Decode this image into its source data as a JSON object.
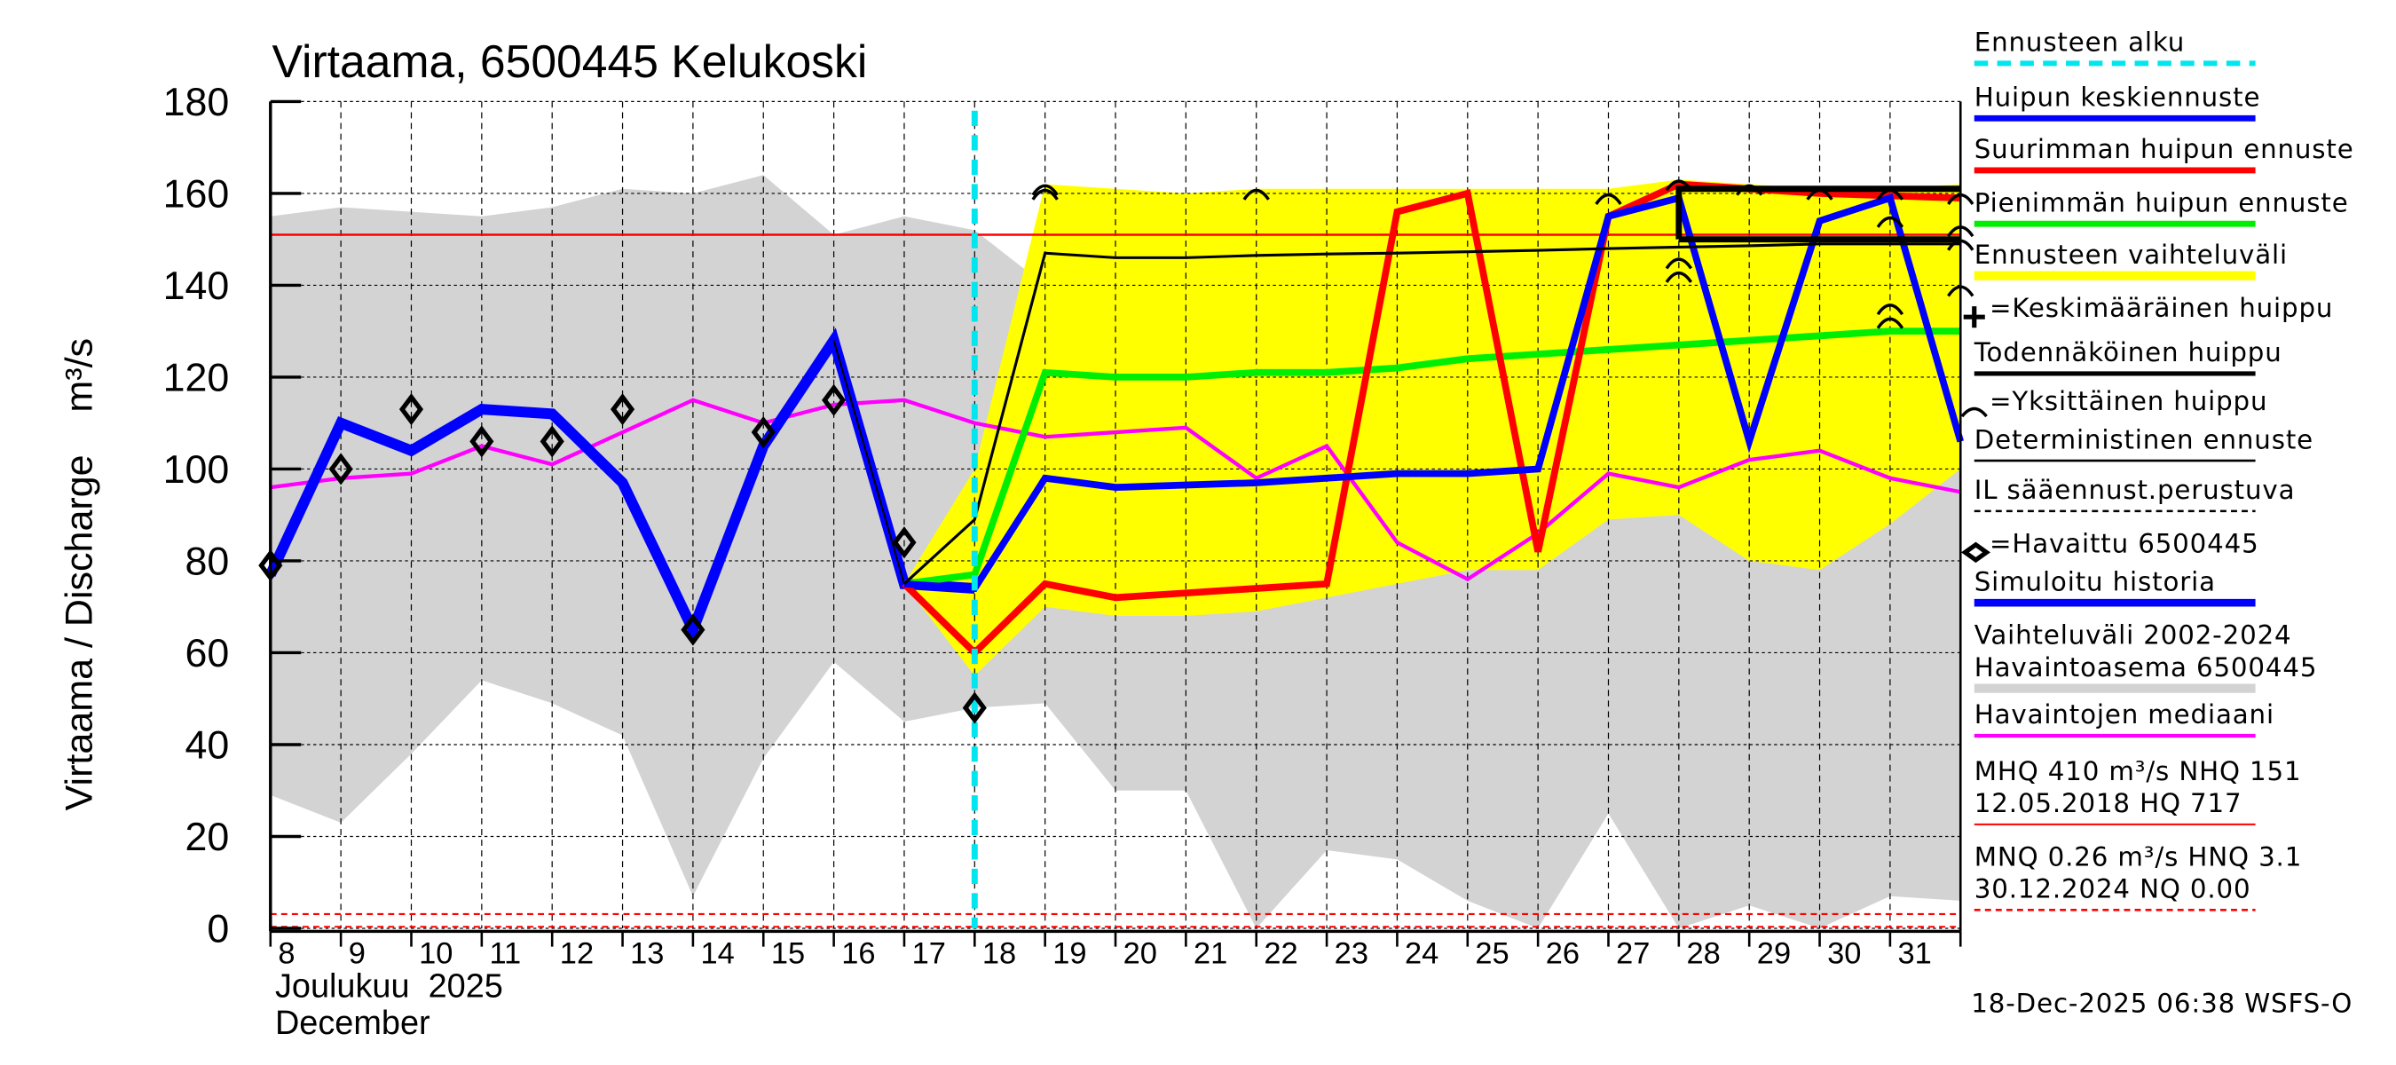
{
  "chart_data": {
    "type": "line",
    "title": "Virtaama, 6500445 Kelukoski",
    "ylabel": "Virtaama / Discharge    m³/s",
    "ylim": [
      0,
      180
    ],
    "yticks": [
      0,
      20,
      40,
      60,
      80,
      100,
      120,
      140,
      160,
      180
    ],
    "xlim": [
      8,
      32
    ],
    "xticks": [
      "8",
      "9",
      "10",
      "11",
      "12",
      "13",
      "14",
      "15",
      "16",
      "17",
      "18",
      "19",
      "20",
      "21",
      "22",
      "23",
      "24",
      "25",
      "26",
      "27",
      "28",
      "29",
      "30",
      "31"
    ],
    "xlabel_month_fi": "Joulukuu  2025",
    "xlabel_month_en": "December",
    "forecast_start_day": 18,
    "grid": true,
    "colors": {
      "forecast_start": "#00e5ee",
      "mean_peak": "#0000ff",
      "max_peak": "#ff0000",
      "min_peak": "#00ee00",
      "forecast_range": "#ffff00",
      "history_range": "#d3d3d3",
      "median": "#ff00ff",
      "deterministic": "#000000",
      "simulated": "#0000ff"
    },
    "historical_range": {
      "x": [
        8,
        9,
        10,
        11,
        12,
        13,
        14,
        15,
        16,
        17,
        18,
        19,
        20,
        21,
        22,
        23,
        24,
        25,
        26,
        27,
        28,
        29,
        30,
        31,
        32
      ],
      "upper": [
        155,
        157,
        156,
        155,
        157,
        161,
        160,
        164,
        151,
        155,
        152,
        140,
        147,
        154,
        158,
        155,
        158,
        154,
        144,
        154,
        160,
        160,
        158,
        150,
        132
      ],
      "lower": [
        29,
        23,
        38,
        54,
        49,
        42,
        7,
        37,
        58,
        45,
        48,
        49,
        30,
        30,
        0,
        17,
        15,
        6,
        0,
        25,
        0,
        5,
        0,
        7,
        6
      ]
    },
    "forecast_range": {
      "x": [
        17,
        18,
        19,
        20,
        21,
        22,
        23,
        24,
        25,
        26,
        27,
        28,
        29,
        30,
        31,
        32
      ],
      "upper": [
        75,
        100,
        162,
        161,
        160,
        161,
        161,
        161,
        161,
        161,
        161,
        163,
        162,
        161,
        161,
        162
      ],
      "lower": [
        75,
        55,
        70,
        68,
        68,
        69,
        72,
        75,
        78,
        78,
        89,
        90,
        80,
        78,
        88,
        100
      ]
    },
    "series": [
      {
        "name": "Havaintojen mediaani",
        "key": "median",
        "x": [
          8,
          9,
          10,
          11,
          12,
          13,
          14,
          15,
          16,
          17,
          18,
          19,
          20,
          21,
          22,
          23,
          24,
          25,
          26,
          27,
          28,
          29,
          30,
          31,
          32
        ],
        "y": [
          96,
          98,
          99,
          105,
          101,
          108,
          115,
          110,
          114,
          115,
          110,
          107,
          108,
          109,
          98,
          105,
          84,
          76,
          86,
          99,
          96,
          102,
          104,
          98,
          95
        ]
      },
      {
        "name": "Simuloitu historia",
        "key": "simulated",
        "x": [
          8,
          9,
          10,
          11,
          12,
          13,
          14,
          15,
          16,
          17,
          18
        ],
        "y": [
          77,
          110,
          104,
          113,
          112,
          97,
          65,
          105,
          128,
          75,
          74
        ]
      },
      {
        "name": "Pienimmän huipun ennuste",
        "key": "min_peak",
        "x": [
          17,
          18,
          19,
          20,
          21,
          22,
          23,
          24,
          25,
          26,
          27,
          28,
          29,
          30,
          31,
          32
        ],
        "y": [
          75,
          77,
          121,
          120,
          120,
          121,
          121,
          122,
          124,
          125,
          126,
          127,
          128,
          129,
          130,
          130
        ]
      },
      {
        "name": "Suurimman huipun ennuste",
        "key": "max_peak",
        "x": [
          17,
          18,
          19,
          20,
          21,
          22,
          23,
          24,
          25,
          26,
          27,
          28,
          29,
          30,
          31,
          32
        ],
        "y": [
          75,
          60,
          75,
          72,
          73,
          74,
          75,
          156,
          160,
          82,
          155,
          162,
          161,
          160,
          159.5,
          159
        ]
      },
      {
        "name": "Huipun keskiennuste",
        "key": "mean_peak",
        "x": [
          17,
          18,
          19,
          20,
          21,
          22,
          23,
          24,
          25,
          26,
          27,
          28,
          29,
          30,
          31,
          32
        ],
        "y": [
          75,
          74,
          98,
          96,
          96.5,
          97,
          98,
          99,
          99,
          100,
          155,
          159,
          106,
          154,
          159,
          106
        ]
      },
      {
        "name": "Deterministinen ennuste",
        "key": "deterministic",
        "x": [
          17,
          18,
          19,
          20,
          21,
          22,
          23,
          24,
          25,
          26,
          27,
          28,
          29,
          30,
          31,
          32
        ],
        "y": [
          75,
          89,
          147,
          146,
          146,
          146.5,
          146.8,
          147,
          147.3,
          147.6,
          148,
          148.3,
          148.6,
          149,
          149,
          149
        ]
      }
    ],
    "observed": {
      "name": "Havaittu 6500445",
      "x": [
        8,
        9,
        10,
        11,
        12,
        13,
        14,
        15,
        16,
        17,
        18
      ],
      "y": [
        79,
        100,
        113,
        106,
        106,
        113,
        65,
        108,
        115,
        84,
        48
      ]
    },
    "probable_peak": {
      "x": [
        28,
        32
      ],
      "upper": 161,
      "lower": 150
    },
    "single_peaks": [
      {
        "x": 19,
        "y": 161
      },
      {
        "x": 19,
        "y": 160
      },
      {
        "x": 22,
        "y": 160
      },
      {
        "x": 27,
        "y": 159
      },
      {
        "x": 28,
        "y": 162
      },
      {
        "x": 28,
        "y": 145
      },
      {
        "x": 28,
        "y": 142
      },
      {
        "x": 29,
        "y": 161
      },
      {
        "x": 30,
        "y": 160
      },
      {
        "x": 31,
        "y": 160
      },
      {
        "x": 31,
        "y": 154
      },
      {
        "x": 31,
        "y": 135
      },
      {
        "x": 31,
        "y": 132
      },
      {
        "x": 32,
        "y": 159
      },
      {
        "x": 32,
        "y": 152
      },
      {
        "x": 32,
        "y": 149
      },
      {
        "x": 32,
        "y": 139
      }
    ],
    "reference_lines": {
      "NHQ": 151,
      "HNQ": 3.1,
      "NQ": 0.0
    },
    "legend": [
      "Ennusteen alku",
      "Huipun keskiennuste",
      "Suurimman huipun ennuste",
      "Pienimmän huipun ennuste",
      "Ennusteen vaihteluväli",
      "=Keskimääräinen huippu",
      "Todennäköinen huippu",
      "=Yksittäinen huippu",
      "Deterministinen ennuste",
      "IL sääennust.perustuva",
      "=Havaittu 6500445",
      "Simuloitu historia",
      "Vaihteluväli 2002-2024",
      "Havaintoasema 6500445",
      "Havaintojen mediaani",
      "MHQ  410 m³/s NHQ  151",
      "12.05.2018 HQ  717",
      "MNQ 0.26 m³/s HNQ  3.1",
      "30.12.2024 NQ 0.00"
    ],
    "footer": "18-Dec-2025 06:38 WSFS-O"
  }
}
